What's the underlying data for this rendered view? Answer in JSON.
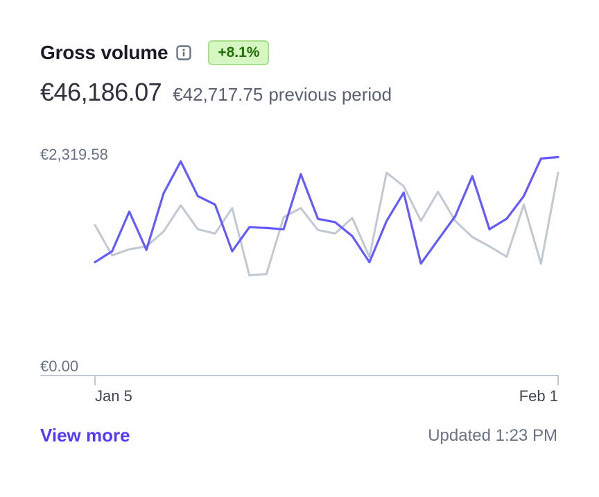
{
  "card": {
    "title": "Gross volume",
    "info_icon": "info-icon",
    "change_badge": "+8.1%",
    "current_value": "€46,186.07",
    "previous_value": "€42,717.75",
    "previous_label": "previous period",
    "view_more": "View more",
    "updated": "Updated 1:23 PM"
  },
  "colors": {
    "current": "#635bff",
    "previous": "#c0c8d2",
    "badge_bg": "#d7f7c2",
    "badge_text": "#217005",
    "link": "#533afd"
  },
  "chart_data": {
    "type": "line",
    "y_tick_labels": [
      "€2,319.58",
      "€0.00"
    ],
    "x_tick_labels": [
      "Jan 5",
      "Feb 1"
    ],
    "ylim": [
      0,
      2319.58
    ],
    "grid": false,
    "series": [
      {
        "values": [
          1143,
          1262,
          1693,
          1277,
          1893,
          2240,
          1862,
          1770,
          1262,
          1524,
          1516,
          1501,
          2102,
          1615,
          1578,
          1427,
          1143,
          1591,
          1901,
          1127,
          1386,
          1643,
          2080,
          1501,
          1616,
          1862,
          2271,
          2286
        ]
      },
      {
        "values": [
          1547,
          1217,
          1284,
          1315,
          1477,
          1762,
          1501,
          1455,
          1732,
          999,
          1014,
          1632,
          1732,
          1493,
          1455,
          1624,
          1202,
          2117,
          1970,
          1593,
          1909,
          1593,
          1417,
          1315,
          1202,
          1770,
          1127,
          2117
        ]
      }
    ]
  }
}
